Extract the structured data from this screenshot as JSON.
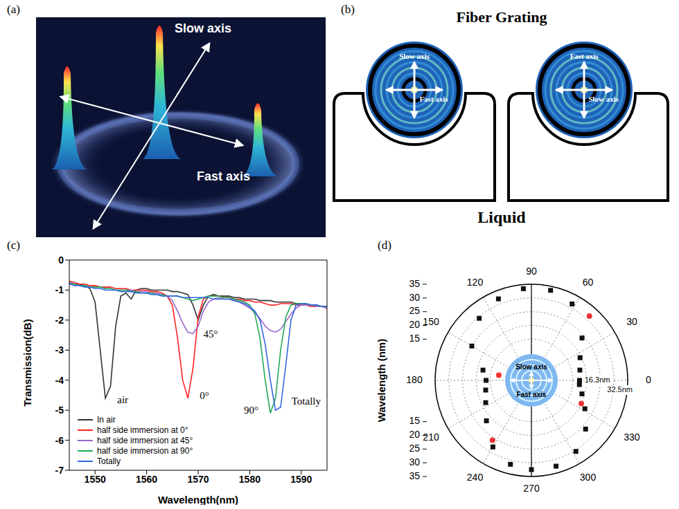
{
  "panels": {
    "a": {
      "letter": "(a)",
      "labels": [
        "Slow axis",
        "Fast axis"
      ]
    },
    "b": {
      "letter": "(b)",
      "title": "Fiber Grating",
      "label": "Liquid",
      "axis_labels": [
        "Slow axis",
        "Fast axis"
      ]
    }
  },
  "chart_data": [
    {
      "letter": "(c)",
      "type": "line",
      "xlabel": "Wavelength(nm)",
      "ylabel": "Transmission(dB)",
      "xlim": [
        1545,
        1595
      ],
      "xticks": [
        1550,
        1560,
        1570,
        1580,
        1590
      ],
      "ylim": [
        -7,
        0
      ],
      "yticks": [
        -7,
        -6,
        -5,
        -4,
        -3,
        -2,
        -1,
        0
      ],
      "legend": "lower left",
      "x": [
        1545,
        1546,
        1547,
        1548,
        1549,
        1550,
        1551,
        1552,
        1553,
        1554,
        1555,
        1556,
        1557,
        1558,
        1559,
        1560,
        1561,
        1562,
        1563,
        1564,
        1565,
        1566,
        1567,
        1568,
        1569,
        1570,
        1571,
        1572,
        1573,
        1574,
        1575,
        1576,
        1577,
        1578,
        1579,
        1580,
        1581,
        1582,
        1583,
        1584,
        1585,
        1586,
        1587,
        1588,
        1589,
        1590,
        1591,
        1592,
        1593,
        1594,
        1595
      ],
      "series": [
        {
          "name": "In air",
          "color": "#333333",
          "annotation": "air",
          "values": [
            -0.75,
            -0.8,
            -0.8,
            -0.85,
            -0.95,
            -1.4,
            -3.0,
            -4.6,
            -4.2,
            -2.2,
            -1.2,
            -1.1,
            -1.3,
            -1.0,
            -0.95,
            -0.95,
            -1.0,
            -1.0,
            -1.0,
            -1.0,
            -1.05,
            -1.05,
            -1.1,
            -1.15,
            -1.5,
            -2.0,
            -1.5,
            -1.2,
            -1.15,
            -1.2,
            -1.2,
            -1.2,
            -1.25,
            -1.25,
            -1.3,
            -1.3,
            -1.3,
            -1.35,
            -1.35,
            -1.35,
            -1.4,
            -1.4,
            -1.4,
            -1.4,
            -1.45,
            -1.45,
            -1.5,
            -1.5,
            -1.5,
            -1.55,
            -1.55
          ]
        },
        {
          "name": "half side immersion at 0°",
          "color": "#ff2222",
          "annotation": "0°",
          "values": [
            -0.7,
            -0.75,
            -0.8,
            -0.8,
            -0.85,
            -0.85,
            -0.9,
            -0.9,
            -0.9,
            -0.95,
            -0.95,
            -0.95,
            -1.0,
            -1.0,
            -1.0,
            -1.0,
            -1.05,
            -1.05,
            -1.1,
            -1.2,
            -1.5,
            -2.6,
            -4.0,
            -4.6,
            -3.6,
            -1.9,
            -1.3,
            -1.2,
            -1.2,
            -1.2,
            -1.25,
            -1.25,
            -1.3,
            -1.3,
            -1.35,
            -1.35,
            -1.4,
            -1.4,
            -1.45,
            -1.5,
            -1.5,
            -1.45,
            -1.45,
            -1.45,
            -1.5,
            -1.5,
            -1.5,
            -1.55,
            -1.55,
            -1.55,
            -1.6
          ]
        },
        {
          "name": "half side immersion at 45°",
          "color": "#9966cc",
          "annotation": "45°",
          "values": [
            -0.75,
            -0.8,
            -0.85,
            -0.85,
            -0.9,
            -0.9,
            -0.9,
            -0.95,
            -0.95,
            -1.0,
            -1.0,
            -1.0,
            -1.0,
            -1.05,
            -1.05,
            -1.05,
            -1.1,
            -1.1,
            -1.15,
            -1.2,
            -1.35,
            -1.7,
            -2.1,
            -2.4,
            -2.45,
            -2.2,
            -1.7,
            -1.4,
            -1.3,
            -1.25,
            -1.3,
            -1.3,
            -1.35,
            -1.4,
            -1.5,
            -1.6,
            -1.75,
            -1.95,
            -2.2,
            -2.35,
            -2.4,
            -2.3,
            -2.05,
            -1.8,
            -1.6,
            -1.5,
            -1.5,
            -1.5,
            -1.55,
            -1.55,
            -1.6
          ]
        },
        {
          "name": "half side immersion at 90°",
          "color": "#22aa55",
          "annotation": "90°",
          "values": [
            -0.8,
            -0.8,
            -0.85,
            -0.85,
            -0.9,
            -0.9,
            -0.9,
            -0.95,
            -0.95,
            -1.0,
            -1.0,
            -1.0,
            -1.05,
            -1.05,
            -1.1,
            -1.1,
            -1.1,
            -1.15,
            -1.15,
            -1.2,
            -1.2,
            -1.2,
            -1.25,
            -1.3,
            -1.35,
            -1.3,
            -1.25,
            -1.2,
            -1.2,
            -1.2,
            -1.25,
            -1.25,
            -1.3,
            -1.35,
            -1.4,
            -1.5,
            -1.8,
            -2.6,
            -4.0,
            -5.1,
            -4.6,
            -3.0,
            -1.9,
            -1.5,
            -1.45,
            -1.45,
            -1.45,
            -1.5,
            -1.5,
            -1.55,
            -1.55
          ]
        },
        {
          "name": "Totally",
          "color": "#3366dd",
          "annotation": "Totally",
          "values": [
            -0.8,
            -0.85,
            -0.85,
            -0.9,
            -0.9,
            -0.95,
            -0.95,
            -1.0,
            -1.0,
            -1.0,
            -1.05,
            -1.05,
            -1.05,
            -1.1,
            -1.1,
            -1.1,
            -1.15,
            -1.15,
            -1.2,
            -1.2,
            -1.2,
            -1.2,
            -1.25,
            -1.25,
            -1.25,
            -1.25,
            -1.25,
            -1.25,
            -1.3,
            -1.3,
            -1.3,
            -1.3,
            -1.35,
            -1.4,
            -1.45,
            -1.55,
            -1.7,
            -2.0,
            -2.8,
            -4.0,
            -5.0,
            -4.9,
            -3.5,
            -2.0,
            -1.5,
            -1.45,
            -1.45,
            -1.5,
            -1.5,
            -1.55,
            -1.55
          ]
        }
      ]
    },
    {
      "letter": "(d)",
      "type": "polar_scatter",
      "ylabel": "Wavelength (nm)",
      "xlim": [
        0,
        360
      ],
      "xticks": [
        0,
        30,
        60,
        90,
        120,
        150,
        180,
        210,
        240,
        270,
        300,
        330
      ],
      "ylim": [
        0,
        35
      ],
      "yticks": [
        15,
        20,
        25,
        30,
        35
      ],
      "inset_labels": [
        "Slow axis",
        "Fast axis"
      ],
      "annotations": [
        {
          "text": "16.3nm",
          "x": 0,
          "y": 16.3
        },
        {
          "text": "32.5nm",
          "x": 0,
          "y": 32.5
        }
      ],
      "series": [
        {
          "color": "#111111",
          "marker": "square",
          "x": [
            0,
            12,
            25,
            40,
            62,
            78,
            95,
            112,
            130,
            150,
            168,
            180,
            192,
            206,
            222,
            240,
            256,
            270,
            286,
            302,
            318,
            332,
            345,
            355
          ],
          "values": [
            17.5,
            18,
            19.5,
            24,
            31.5,
            33.5,
            33.5,
            32,
            29.5,
            25,
            18,
            16.5,
            17,
            18.5,
            22,
            28,
            31.5,
            32.5,
            32.5,
            30.5,
            26.5,
            22,
            19,
            17.5
          ]
        },
        {
          "color": "#ee3333",
          "marker": "circle",
          "x": [
            48,
            171,
            237,
            335
          ],
          "values": [
            31.5,
            12,
            26,
            20
          ]
        }
      ]
    }
  ]
}
